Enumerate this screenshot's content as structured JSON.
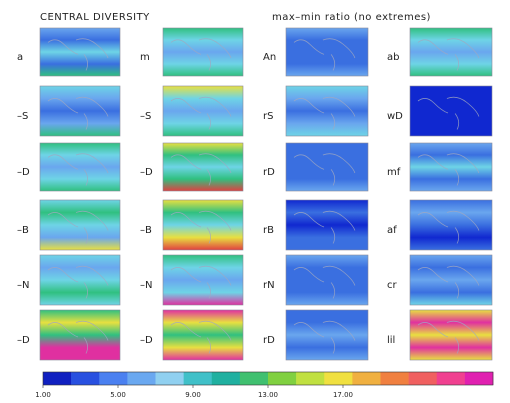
{
  "titles": {
    "left": "CENTRAL DIVERSITY",
    "right": "max–min ratio (no extremes)"
  },
  "columns": [
    {
      "labels": [
        "a",
        "–S",
        "–D",
        "–B",
        "–N",
        "–D"
      ]
    },
    {
      "labels": [
        "m",
        "–S",
        "–D",
        "–B",
        "–N",
        "–D"
      ]
    },
    {
      "labels": [
        "An",
        "rS",
        "rD",
        "rB",
        "rN",
        "rD"
      ]
    },
    {
      "labels": [
        "ab",
        "wD",
        "mf",
        "af",
        "cr",
        "lil"
      ]
    }
  ],
  "colorbar": {
    "lim": [
      1,
      25
    ],
    "ticks": [
      {
        "value": 1,
        "label": "1.00"
      },
      {
        "value": 5,
        "label": "5.00"
      },
      {
        "value": 9,
        "label": "9.00"
      },
      {
        "value": 13,
        "label": "13.00"
      },
      {
        "value": 17,
        "label": "17.00"
      }
    ],
    "colors": [
      "#1020c0",
      "#2850e0",
      "#4a80f0",
      "#6aa8f0",
      "#90d0f0",
      "#40c0c8",
      "#20b0a0",
      "#40c070",
      "#80d040",
      "#c0e040",
      "#f0e040",
      "#f0b040",
      "#f08040",
      "#f06060",
      "#f04090",
      "#e020b0"
    ]
  }
}
